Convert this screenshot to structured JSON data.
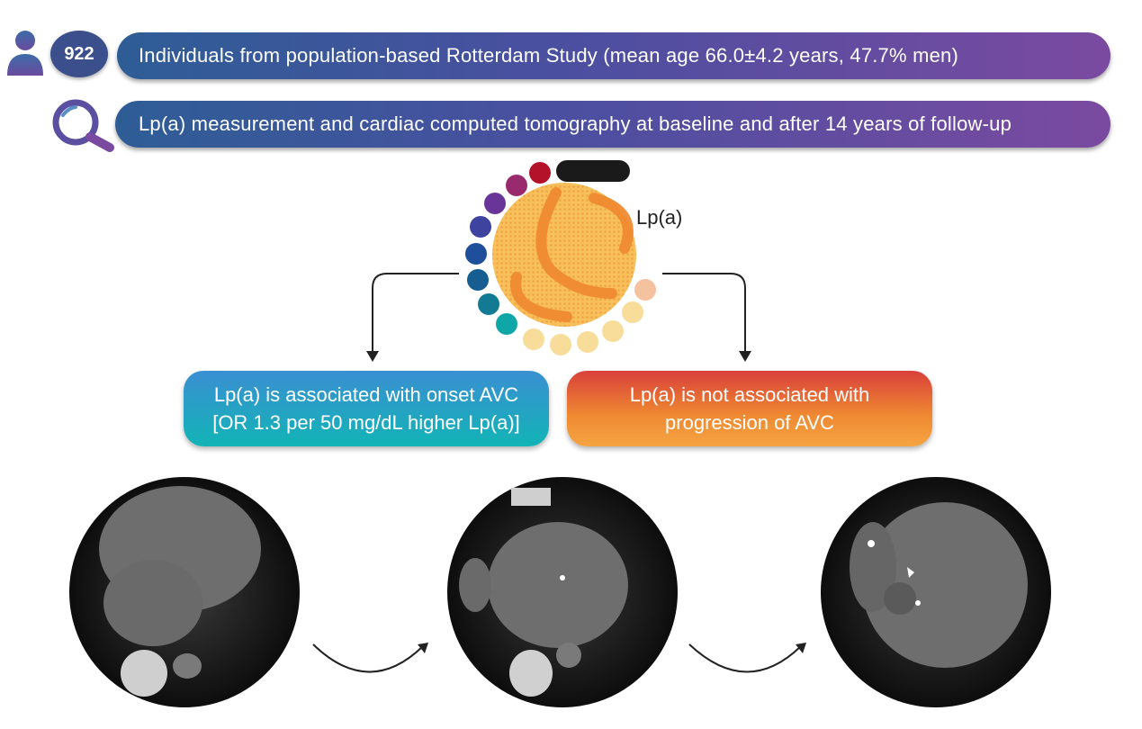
{
  "header": {
    "count": "922",
    "population_text": "Individuals from population-based Rotterdam Study (mean age 66.0±4.2 years, 47.7% men)",
    "method_text": "Lp(a) measurement and cardiac computed tomography at baseline and after 14 years of follow-up"
  },
  "particle": {
    "label": "Lp(a)"
  },
  "outcomes": {
    "onset": {
      "line1": "Lp(a) is associated with onset AVC",
      "line2": "[OR 1.3 per 50 mg/dL higher Lp(a)]"
    },
    "progression": {
      "line1": "Lp(a) is not associated with",
      "line2": "progression of AVC"
    }
  },
  "colors": {
    "pill_gradient": [
      "#2e5d96",
      "#7a4aa0"
    ],
    "onset_box": [
      "#3a8fd2",
      "#12b4b6"
    ],
    "progression_box": [
      "#d9403a",
      "#f5a442"
    ],
    "particle_core": "#f7c05a",
    "apo_strand": "#ef8a32"
  },
  "icons": [
    "person-icon",
    "magnifier-icon",
    "lpa-particle-icon",
    "arrow-icon"
  ],
  "ct_scans": [
    "ct-scan-baseline",
    "ct-scan-intermediate",
    "ct-scan-follow-up"
  ]
}
